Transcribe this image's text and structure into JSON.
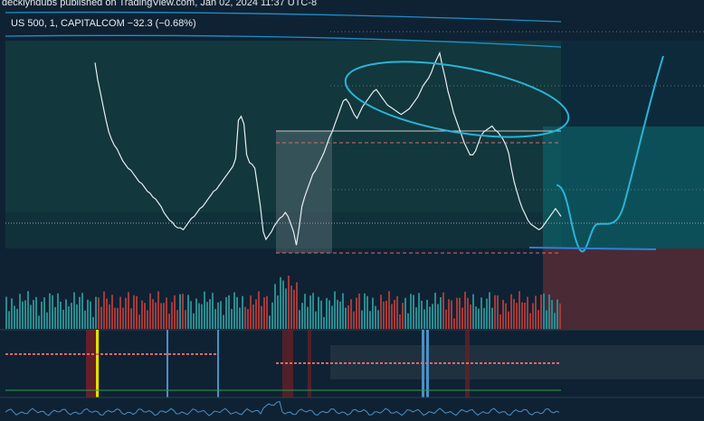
{
  "header": {
    "published_by": "decklyndubs published on TradingView.com, Jan 02, 2024 11:37 UTC-8"
  },
  "symbol_bar": {
    "symbol": "US 500, 1, CAPITALCOM",
    "change": "−32.3 (−0.68%)"
  },
  "colors": {
    "background": "#0f2233",
    "candle_up": "#e6eef0",
    "candle_down": "#e6eef0",
    "volume_up": "#2a8a8f",
    "volume_down": "#a33a3a",
    "annotation": "#28b4d8",
    "support_line": "#2f7fd9",
    "zone_upper": "#0e5f66",
    "zone_lower": "#4a2a35"
  },
  "chart_data": {
    "type": "line",
    "title": "",
    "xlabel": "",
    "ylabel": "",
    "series": [
      {
        "values": [
          100,
          91,
          84,
          77,
          70,
          64,
          60,
          57,
          55,
          52,
          49,
          47,
          45,
          44,
          42,
          40,
          38,
          37,
          35,
          33,
          32,
          30,
          29,
          27,
          25,
          22,
          20,
          18,
          17,
          15,
          14,
          14,
          13,
          15,
          17,
          19,
          20,
          22,
          24,
          25,
          27,
          29,
          31,
          33,
          34,
          36,
          38,
          40,
          42,
          44,
          46,
          50,
          70,
          72,
          68,
          52,
          48,
          47,
          45,
          35,
          25,
          12,
          8,
          10,
          12,
          15,
          17,
          19,
          20,
          22,
          20,
          16,
          12,
          5,
          14,
          25,
          30,
          34,
          38,
          42,
          44,
          47,
          50,
          53,
          57,
          61,
          64,
          68,
          72,
          76,
          80,
          81,
          79,
          76,
          73,
          71,
          74,
          77,
          79,
          81,
          83,
          85,
          86,
          84,
          82,
          80,
          78,
          77,
          76,
          75,
          74,
          73,
          74,
          75,
          76,
          78,
          80,
          82,
          85,
          88,
          90,
          92,
          95,
          99,
          102,
          105,
          98,
          92,
          85,
          80,
          74,
          70,
          66,
          62,
          58,
          55,
          52,
          52,
          54,
          58,
          62,
          64,
          65,
          66,
          67,
          65,
          64,
          62,
          60,
          57,
          53,
          45,
          38,
          33,
          28,
          24,
          21,
          18,
          16,
          15,
          14,
          13,
          14,
          16,
          18,
          20,
          22,
          24,
          22,
          20
        ]
      }
    ],
    "ylim": [
      0,
      110
    ],
    "grid": false,
    "legend": "none"
  }
}
